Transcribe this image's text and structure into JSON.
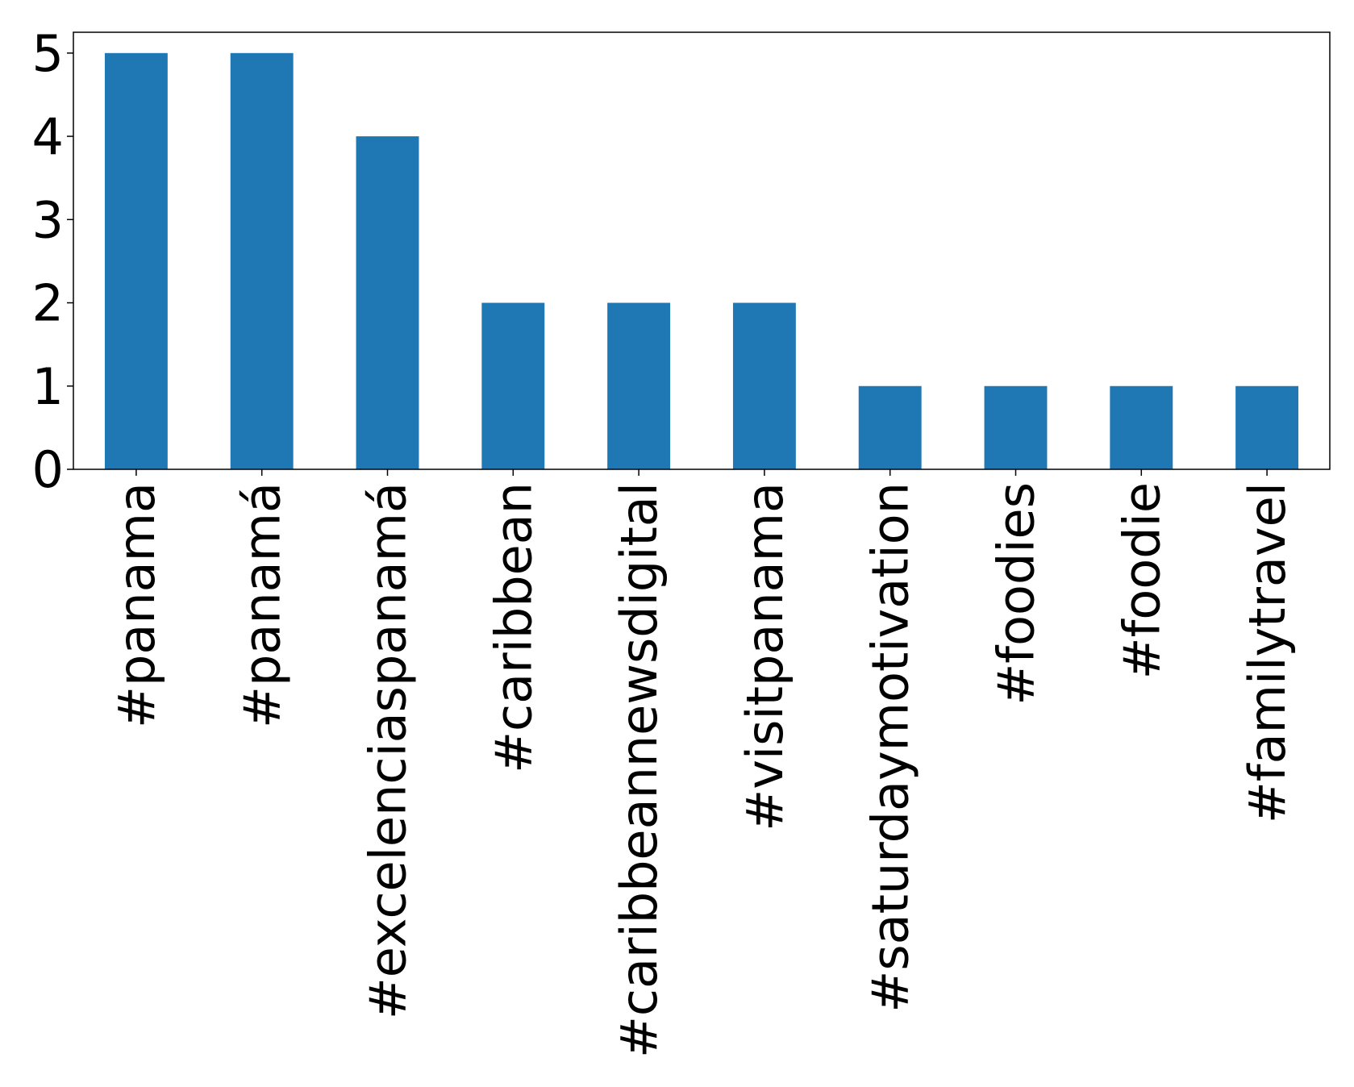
{
  "chart_data": {
    "type": "bar",
    "categories": [
      "#panama",
      "#panamá",
      "#excelenciaspanamá",
      "#caribbean",
      "#caribbeannewsdigital",
      "#visitpanama",
      "#saturdaymotivation",
      "#foodies",
      "#foodie",
      "#familytravel"
    ],
    "values": [
      5,
      5,
      4,
      2,
      2,
      2,
      1,
      1,
      1,
      1
    ],
    "yticks": [
      "0",
      "1",
      "2",
      "3",
      "4",
      "5"
    ],
    "ylim": [
      0,
      5.25
    ],
    "title": "",
    "xlabel": "",
    "ylabel": "",
    "grid": false,
    "bar_color": "#1f77b4"
  }
}
